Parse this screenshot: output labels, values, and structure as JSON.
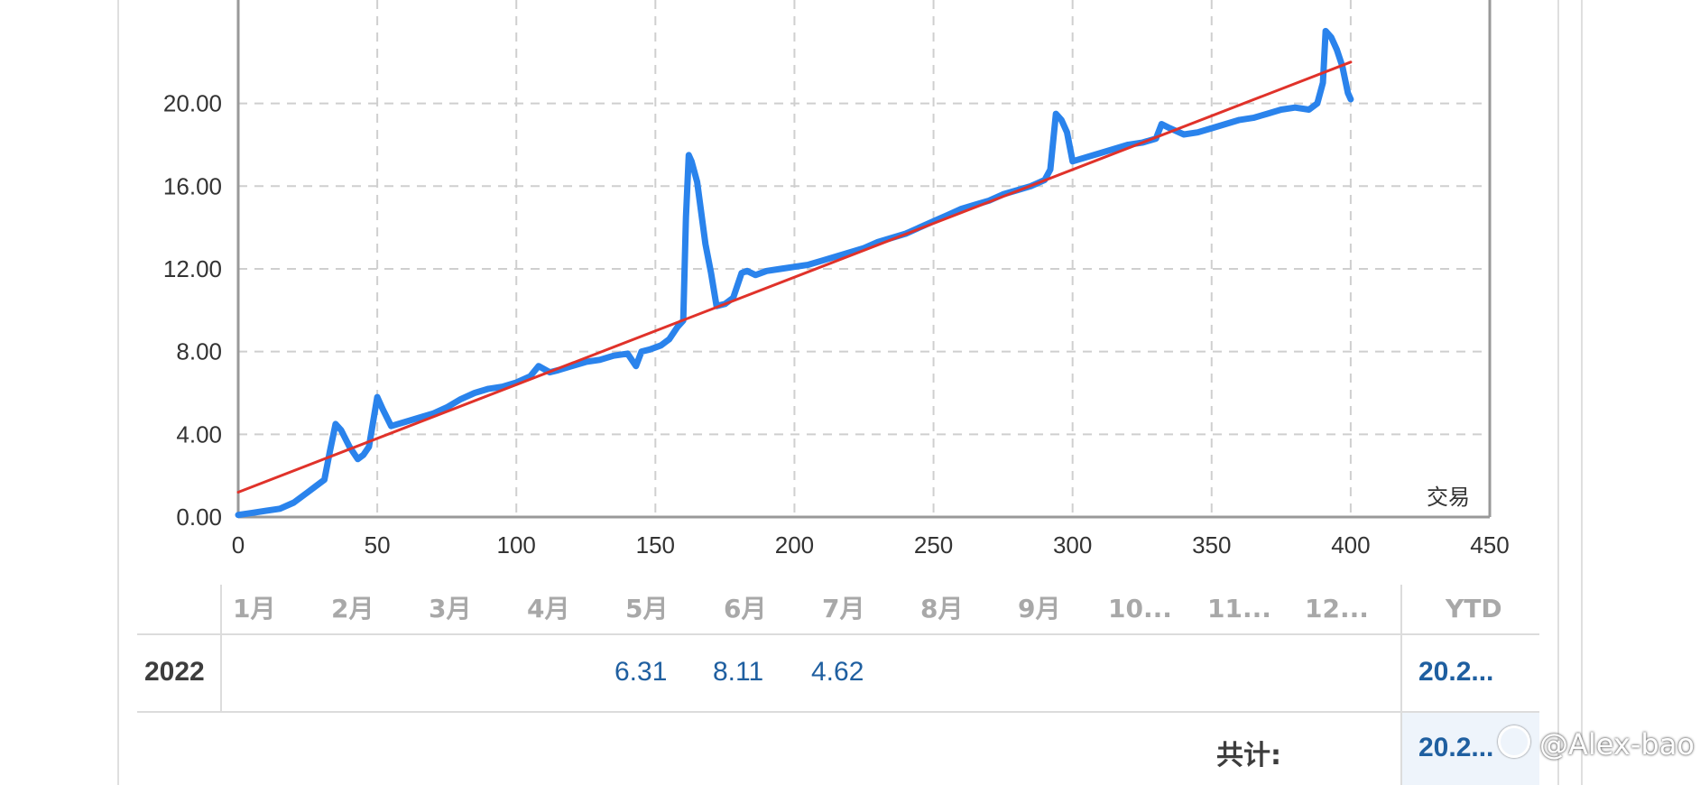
{
  "chart_data": {
    "type": "line",
    "x_axis_label": "交易",
    "xlim": [
      0,
      450
    ],
    "ylim": [
      0,
      25
    ],
    "x_ticks": [
      "0",
      "50",
      "100",
      "150",
      "200",
      "250",
      "300",
      "350",
      "400",
      "450"
    ],
    "y_ticks": [
      "0.00",
      "4.00",
      "8.00",
      "12.00",
      "16.00",
      "20.00"
    ],
    "grid": true,
    "series": [
      {
        "color": "#2a83ec",
        "x": [
          0,
          5,
          10,
          15,
          20,
          25,
          28,
          31,
          33,
          35,
          37,
          40,
          43,
          45,
          47,
          50,
          52,
          55,
          60,
          65,
          70,
          75,
          80,
          85,
          90,
          95,
          100,
          105,
          108,
          112,
          115,
          120,
          125,
          130,
          135,
          140,
          143,
          145,
          148,
          152,
          155,
          158,
          160,
          161,
          162,
          163,
          165,
          168,
          170,
          172,
          175,
          178,
          181,
          183,
          186,
          190,
          195,
          200,
          205,
          210,
          215,
          220,
          225,
          230,
          235,
          240,
          245,
          250,
          255,
          260,
          265,
          270,
          275,
          280,
          285,
          290,
          292,
          294,
          296,
          298,
          300,
          305,
          310,
          315,
          320,
          325,
          330,
          332,
          335,
          340,
          345,
          350,
          355,
          360,
          365,
          370,
          375,
          380,
          385,
          388,
          390,
          391,
          393,
          395,
          397,
          399,
          400
        ],
        "y": [
          0.1,
          0.2,
          0.3,
          0.4,
          0.7,
          1.2,
          1.5,
          1.8,
          3.2,
          4.5,
          4.2,
          3.4,
          2.8,
          3.0,
          3.4,
          5.8,
          5.2,
          4.4,
          4.6,
          4.8,
          5.0,
          5.3,
          5.7,
          6.0,
          6.2,
          6.3,
          6.5,
          6.8,
          7.3,
          7.0,
          7.1,
          7.3,
          7.5,
          7.6,
          7.8,
          7.9,
          7.3,
          8.0,
          8.1,
          8.3,
          8.6,
          9.2,
          9.5,
          14.5,
          17.5,
          17.2,
          16.2,
          13.2,
          11.8,
          10.2,
          10.3,
          10.6,
          11.8,
          11.9,
          11.7,
          11.9,
          12.0,
          12.1,
          12.2,
          12.4,
          12.6,
          12.8,
          13.0,
          13.3,
          13.5,
          13.7,
          14.0,
          14.3,
          14.6,
          14.9,
          15.1,
          15.3,
          15.6,
          15.8,
          16.0,
          16.3,
          16.8,
          19.5,
          19.2,
          18.6,
          17.2,
          17.4,
          17.6,
          17.8,
          18.0,
          18.1,
          18.3,
          19.0,
          18.8,
          18.5,
          18.6,
          18.8,
          19.0,
          19.2,
          19.3,
          19.5,
          19.7,
          19.8,
          19.7,
          20.0,
          21.0,
          23.5,
          23.2,
          22.6,
          21.8,
          20.5,
          20.2
        ]
      },
      {
        "color": "#e0322a",
        "x": [
          0,
          400
        ],
        "y": [
          1.2,
          22.0
        ]
      }
    ]
  },
  "table": {
    "months": [
      "1月",
      "2月",
      "3月",
      "4月",
      "5月",
      "6月",
      "7月",
      "8月",
      "9月",
      "10...",
      "11...",
      "12..."
    ],
    "ytd_header": "YTD",
    "year": "2022",
    "may": "6.31",
    "jun": "8.11",
    "jul": "4.62",
    "ytd": "20.2...",
    "total_label": "共计:",
    "total": "20.2..."
  },
  "watermark": "@Alex-bao fu"
}
